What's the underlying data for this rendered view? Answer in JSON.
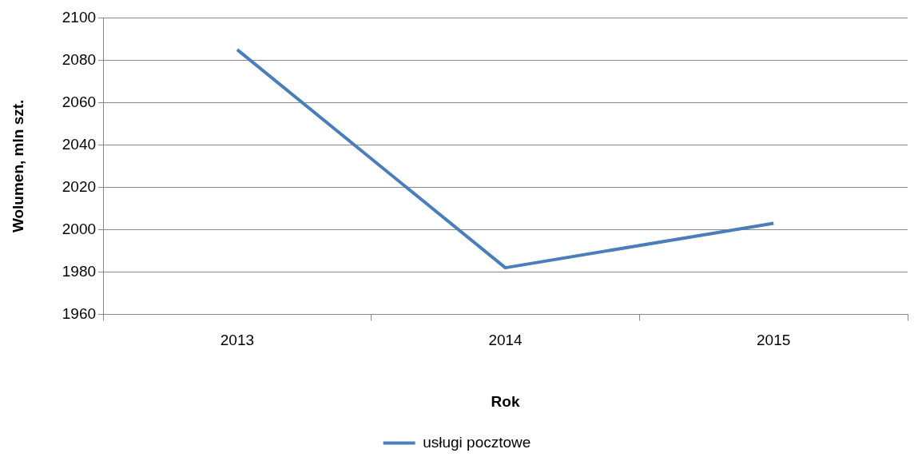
{
  "chart_data": {
    "type": "line",
    "xlabel": "Rok",
    "ylabel": "Wolumen, mln szt.",
    "categories": [
      "2013",
      "2014",
      "2015"
    ],
    "series": [
      {
        "name": "usługi pocztowe",
        "color": "#4a7ebb",
        "values": [
          2085,
          1982,
          2003
        ]
      }
    ],
    "ylim": [
      1960,
      2100
    ],
    "yticks": [
      1960,
      1980,
      2000,
      2020,
      2040,
      2060,
      2080,
      2100
    ],
    "grid": "y",
    "legend": "bottom"
  }
}
